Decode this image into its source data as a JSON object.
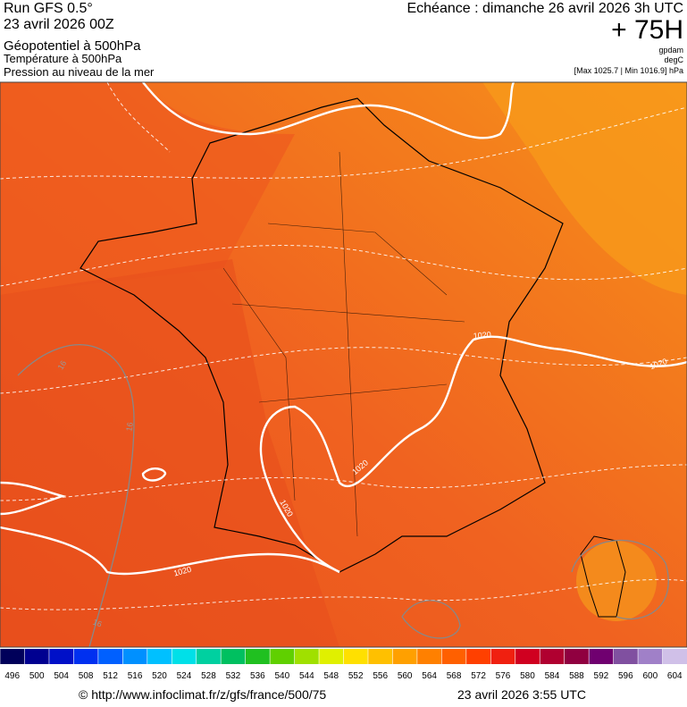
{
  "header": {
    "run": "Run GFS 0.5°",
    "run_date": "23 avril 2026 00Z",
    "field1": "Géopotentiel à 500hPa",
    "field2": "Température à 500hPa",
    "field3": "Pression au niveau de la mer",
    "valid": "Echéance : dimanche 26 avril 2026 3h UTC",
    "lead": "+ 75H",
    "unit1": "gpdam",
    "unit2": "degC",
    "pressure_range": "[Max 1025.7 | Min 1016.9] hPa"
  },
  "map": {
    "contour_labels": [
      "1020",
      "1020",
      "1020",
      "1020",
      "1020",
      "16",
      "16",
      "16"
    ]
  },
  "colorbar": {
    "labels": [
      496,
      500,
      504,
      508,
      512,
      516,
      520,
      524,
      528,
      532,
      536,
      540,
      544,
      548,
      552,
      556,
      560,
      564,
      568,
      572,
      576,
      580,
      584,
      588,
      592,
      596,
      600,
      604
    ],
    "colors": [
      "#00005a",
      "#000090",
      "#0010c8",
      "#0030f0",
      "#0060ff",
      "#0090ff",
      "#00c0ff",
      "#00e0e8",
      "#00d0a0",
      "#00c060",
      "#20c020",
      "#60d000",
      "#a0e000",
      "#e0f000",
      "#ffe000",
      "#ffc000",
      "#ffa000",
      "#ff8000",
      "#ff6000",
      "#ff4000",
      "#f02010",
      "#d00020",
      "#b00030",
      "#900040",
      "#700070",
      "#8050a0",
      "#a080c8",
      "#d0c0e8"
    ]
  },
  "footer": {
    "source": "© http://www.infoclimat.fr/z/gfs/france/500/75",
    "generated": "23 avril 2026  3:55 UTC"
  }
}
